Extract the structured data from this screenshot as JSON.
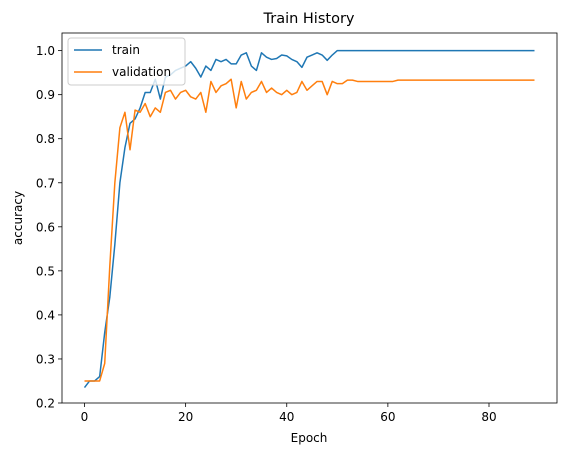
{
  "chart_data": {
    "type": "line",
    "title": "Train History",
    "xlabel": "Epoch",
    "ylabel": "accuracy",
    "xlim": [
      -4.45,
      93.45
    ],
    "ylim": [
      0.2,
      1.04
    ],
    "xticks": [
      0,
      20,
      40,
      60,
      80
    ],
    "yticks": [
      0.2,
      0.3,
      0.4,
      0.5,
      0.6,
      0.7,
      0.8,
      0.9,
      1.0
    ],
    "grid": false,
    "legend": "upper left",
    "series": [
      {
        "name": "train",
        "color": "#1f77b4",
        "x": [
          0,
          1,
          2,
          3,
          4,
          5,
          6,
          7,
          8,
          9,
          10,
          11,
          12,
          13,
          14,
          15,
          16,
          17,
          18,
          19,
          20,
          21,
          22,
          23,
          24,
          25,
          26,
          27,
          28,
          29,
          30,
          31,
          32,
          33,
          34,
          35,
          36,
          37,
          38,
          39,
          40,
          41,
          42,
          43,
          44,
          45,
          46,
          47,
          48,
          49,
          50,
          51,
          52,
          53,
          54,
          55,
          56,
          57,
          58,
          59,
          60,
          61,
          62,
          63,
          64,
          65,
          66,
          67,
          68,
          69,
          70,
          71,
          72,
          73,
          74,
          75,
          76,
          77,
          78,
          79,
          80,
          81,
          82,
          83,
          84,
          85,
          86,
          87,
          88,
          89
        ],
        "values": [
          0.235,
          0.25,
          0.25,
          0.26,
          0.36,
          0.44,
          0.56,
          0.7,
          0.78,
          0.835,
          0.845,
          0.87,
          0.905,
          0.905,
          0.935,
          0.89,
          0.94,
          0.945,
          0.955,
          0.96,
          0.965,
          0.975,
          0.96,
          0.94,
          0.965,
          0.955,
          0.98,
          0.975,
          0.98,
          0.97,
          0.97,
          0.99,
          0.995,
          0.965,
          0.955,
          0.995,
          0.985,
          0.98,
          0.982,
          0.99,
          0.988,
          0.98,
          0.975,
          0.962,
          0.985,
          0.99,
          0.995,
          0.99,
          0.978,
          0.99,
          1.0,
          1.0,
          1.0,
          1.0,
          1.0,
          1.0,
          1.0,
          1.0,
          1.0,
          1.0,
          1.0,
          1.0,
          1.0,
          1.0,
          1.0,
          1.0,
          1.0,
          1.0,
          1.0,
          1.0,
          1.0,
          1.0,
          1.0,
          1.0,
          1.0,
          1.0,
          1.0,
          1.0,
          1.0,
          1.0,
          1.0,
          1.0,
          1.0,
          1.0,
          1.0,
          1.0,
          1.0,
          1.0,
          1.0,
          1.0
        ]
      },
      {
        "name": "validation",
        "color": "#ff7f0e",
        "x": [
          0,
          1,
          2,
          3,
          4,
          5,
          6,
          7,
          8,
          9,
          10,
          11,
          12,
          13,
          14,
          15,
          16,
          17,
          18,
          19,
          20,
          21,
          22,
          23,
          24,
          25,
          26,
          27,
          28,
          29,
          30,
          31,
          32,
          33,
          34,
          35,
          36,
          37,
          38,
          39,
          40,
          41,
          42,
          43,
          44,
          45,
          46,
          47,
          48,
          49,
          50,
          51,
          52,
          53,
          54,
          55,
          56,
          57,
          58,
          59,
          60,
          61,
          62,
          63,
          64,
          65,
          66,
          67,
          68,
          69,
          70,
          71,
          72,
          73,
          74,
          75,
          76,
          77,
          78,
          79,
          80,
          81,
          82,
          83,
          84,
          85,
          86,
          87,
          88,
          89
        ],
        "values": [
          0.25,
          0.25,
          0.25,
          0.25,
          0.29,
          0.51,
          0.7,
          0.825,
          0.86,
          0.775,
          0.865,
          0.86,
          0.88,
          0.85,
          0.87,
          0.86,
          0.905,
          0.91,
          0.89,
          0.905,
          0.91,
          0.895,
          0.89,
          0.905,
          0.86,
          0.93,
          0.905,
          0.92,
          0.925,
          0.935,
          0.87,
          0.93,
          0.89,
          0.905,
          0.91,
          0.93,
          0.905,
          0.915,
          0.905,
          0.9,
          0.91,
          0.9,
          0.905,
          0.93,
          0.91,
          0.92,
          0.93,
          0.93,
          0.9,
          0.93,
          0.925,
          0.925,
          0.933,
          0.933,
          0.93,
          0.93,
          0.93,
          0.93,
          0.93,
          0.93,
          0.93,
          0.93,
          0.933,
          0.933,
          0.933,
          0.933,
          0.933,
          0.933,
          0.933,
          0.933,
          0.933,
          0.933,
          0.933,
          0.933,
          0.933,
          0.933,
          0.933,
          0.933,
          0.933,
          0.933,
          0.933,
          0.933,
          0.933,
          0.933,
          0.933,
          0.933,
          0.933,
          0.933,
          0.933,
          0.933
        ]
      }
    ]
  }
}
